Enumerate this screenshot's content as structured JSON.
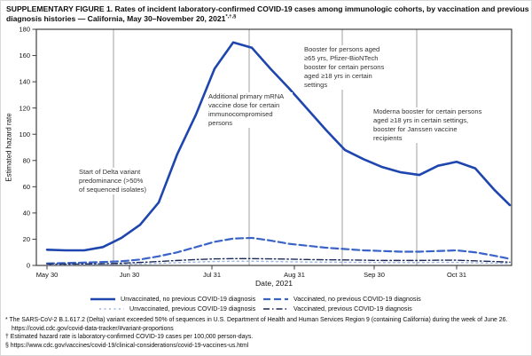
{
  "figure": {
    "title": "SUPPLEMENTARY FIGURE 1. Rates of incident laboratory-confirmed COVID-19 cases among immunologic cohorts, by vaccination and previous diagnosis histories — California, May 30–November 20, 2021",
    "title_superscript": "*,†,§"
  },
  "chart_data": {
    "type": "line",
    "title": "Rates of incident laboratory-confirmed COVID-19 cases among immunologic cohorts, by vaccination and previous diagnosis histories — California, May 30–November 20, 2021",
    "xlabel": "Date, 2021",
    "ylabel": "Estimated hazard rate",
    "ylim": [
      0,
      180
    ],
    "y_tick_step": 20,
    "grid": "vertical event reference lines only",
    "legend_position": "bottom",
    "x_ticks": [
      {
        "label": "May 30",
        "day": 0
      },
      {
        "label": "Jun 30",
        "day": 31
      },
      {
        "label": "Jul 31",
        "day": 62
      },
      {
        "label": "Aug 31",
        "day": 93
      },
      {
        "label": "Sep 30",
        "day": 123
      },
      {
        "label": "Oct 31",
        "day": 154
      }
    ],
    "days": [
      0,
      7,
      14,
      21,
      28,
      35,
      42,
      49,
      56,
      63,
      70,
      77,
      84,
      91,
      98,
      105,
      112,
      119,
      126,
      133,
      140,
      147,
      154,
      161,
      168,
      174
    ],
    "dates": [
      "May 30",
      "Jun 6",
      "Jun 13",
      "Jun 20",
      "Jun 27",
      "Jul 4",
      "Jul 11",
      "Jul 18",
      "Jul 25",
      "Aug 1",
      "Aug 8",
      "Aug 15",
      "Aug 22",
      "Aug 29",
      "Sep 5",
      "Sep 12",
      "Sep 19",
      "Sep 26",
      "Oct 3",
      "Oct 10",
      "Oct 17",
      "Oct 24",
      "Oct 31",
      "Nov 7",
      "Nov 14",
      "Nov 20"
    ],
    "series": [
      {
        "name": "Unvaccinated, no previous COVID-19 diagnosis",
        "color": "#1e46ae",
        "dash": "",
        "width": 2.6,
        "values": [
          12,
          11.5,
          11.5,
          14,
          21,
          31,
          48,
          85,
          115,
          150,
          170,
          166,
          150,
          135,
          119,
          103,
          88,
          81,
          75,
          71,
          69,
          76,
          79,
          74,
          58,
          46
        ]
      },
      {
        "name": "Vaccinated, no previous COVID-19 diagnosis",
        "color": "#3a63c8",
        "dash": "8 4",
        "width": 2.2,
        "values": [
          1.5,
          1.8,
          2.2,
          2.6,
          3.2,
          4.5,
          7,
          10,
          14,
          18,
          20.5,
          21,
          19,
          16.5,
          15,
          13.5,
          12.5,
          11.5,
          11,
          10.5,
          10.5,
          11,
          11.5,
          10,
          7.5,
          5
        ]
      },
      {
        "name": "Unvaccinated, previous COVID-19 diagnosis",
        "color": "#9fb6e2",
        "dash": "2 3.5",
        "width": 1.4,
        "values": [
          0.5,
          0.5,
          0.6,
          0.7,
          0.9,
          1.2,
          1.6,
          2.1,
          2.6,
          3,
          3.2,
          3.2,
          3,
          2.8,
          2.6,
          2.5,
          2.4,
          2.3,
          2.2,
          2.2,
          2.2,
          2.3,
          2.3,
          2,
          1.8,
          1.5
        ]
      },
      {
        "name": "Vaccinated, previous COVID-19 diagnosis",
        "color": "#1c2a57",
        "dash": "7 3 1.5 3",
        "width": 1.4,
        "values": [
          1,
          1,
          1.1,
          1.3,
          1.7,
          2.3,
          3,
          3.8,
          4.5,
          5,
          5.2,
          5.2,
          5,
          4.8,
          4.5,
          4.3,
          4.2,
          4,
          3.8,
          3.8,
          3.8,
          4,
          4,
          3.5,
          3,
          2.5
        ]
      }
    ],
    "event_lines": [
      {
        "day": 25,
        "label": "Start of Delta variant predominance (>50% of sequenced isolates)"
      },
      {
        "day": 76,
        "label": "Additional primary mRNA vaccine dose for certain immunocompromised persons"
      },
      {
        "day": 111,
        "label": "Booster for persons aged ≥65 yrs, Pfizer-BioNTech booster for certain persons aged ≥18 yrs in certain settings"
      },
      {
        "day": 139,
        "label": "Moderna booster for certain persons aged ≥18 yrs in certain settings, booster for Janssen vaccine recipients"
      }
    ],
    "colors": {
      "axis": "#3f3f3f",
      "event_line": "#a0a0a0",
      "accent_blue": "#1e46ae"
    }
  },
  "footnotes": [
    {
      "marker": "*",
      "text": "The SARS-CoV-2 B.1.617.2 (Delta) variant exceeded 50% of sequences in U.S. Department of Health and Human Services Region 9 (containing California) during the week of June 26. https://covid.cdc.gov/covid-data-tracker/#variant-proportions"
    },
    {
      "marker": "†",
      "text": "Estimated hazard rate is laboratory-confirmed COVID-19 cases per 100,000 person-days."
    },
    {
      "marker": "§",
      "text": "https://www.cdc.gov/vaccines/covid-19/clinical-considerations/covid-19-vaccines-us.html"
    }
  ]
}
